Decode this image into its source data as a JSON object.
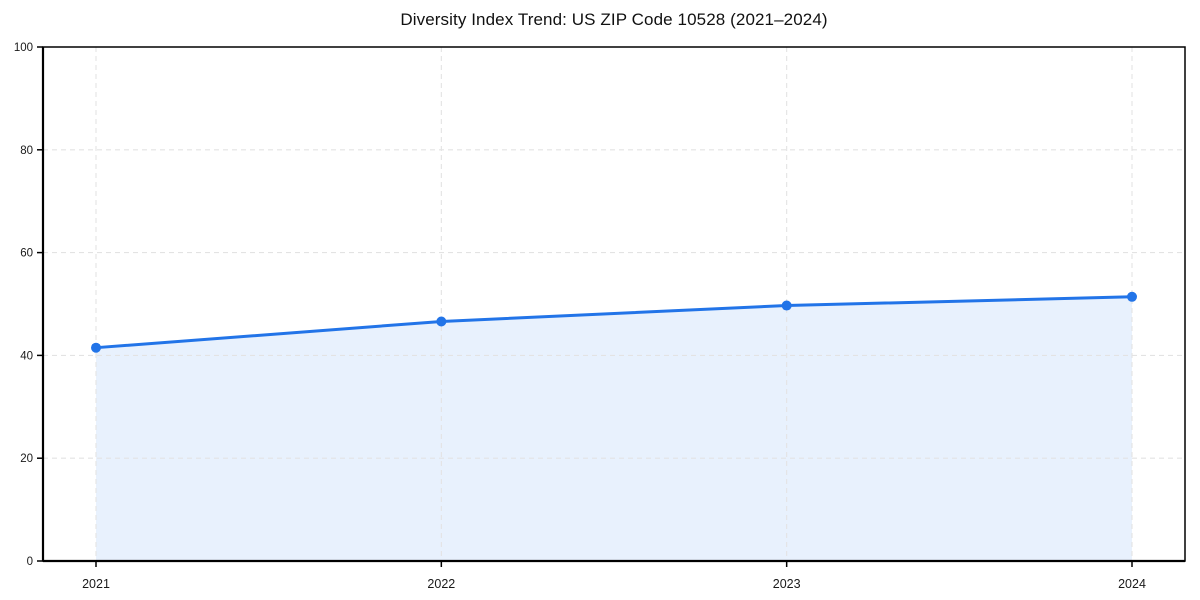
{
  "page": {
    "background": "#ffffff"
  },
  "chart_data": {
    "type": "area",
    "title": "Diversity Index Trend: US ZIP Code 10528 (2021–2024)",
    "categories": [
      "2021",
      "2022",
      "2023",
      "2024"
    ],
    "series": [
      {
        "name": "Diversity Index",
        "values": [
          41.5,
          46.6,
          49.7,
          51.4
        ]
      }
    ],
    "xlabel": "",
    "ylabel": "",
    "ylim": [
      0,
      100
    ],
    "yticks": [
      0,
      20,
      40,
      60,
      80,
      100
    ],
    "grid": "dashed gridlines on both axes",
    "legend": "none",
    "marker": "circle",
    "colors": {
      "line": "#2274e8",
      "fill": "#2274e8",
      "fill_opacity": 0.1,
      "grid": "#e3e3e3",
      "axis": "#000000",
      "tick_label": "#1a1a1a",
      "title": "#111111"
    }
  }
}
